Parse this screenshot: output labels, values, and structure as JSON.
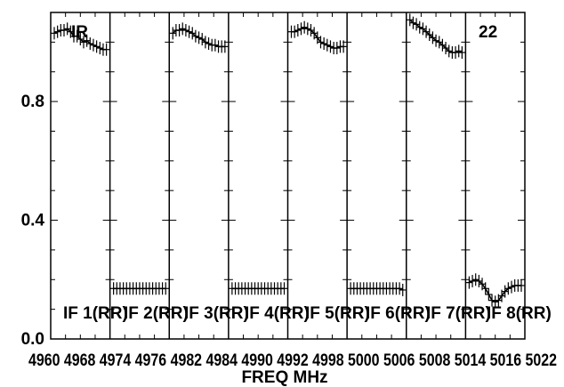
{
  "chart_data": {
    "type": "scatter",
    "title": "",
    "xlabel": "FREQ MHz",
    "ylabel": "",
    "ylim": [
      0.0,
      1.1
    ],
    "y_ticks": [
      0.0,
      0.4,
      0.8
    ],
    "y_tick_labels": [
      "0.0",
      "0.4",
      "0.8"
    ],
    "top_left_label": "IR",
    "top_right_label": "22",
    "x_tick_labels_text": "4960 4968 4974 4976 4982 4984 4990 4992 4998 5000 5006 5008 5014 5016 5022",
    "panels": [
      {
        "label": "IF 1(RR)",
        "xlim": [
          4960,
          4968
        ],
        "x": [
          4960,
          4960.5,
          4961,
          4961.5,
          4962,
          4962.5,
          4963,
          4963.5,
          4964,
          4964.5,
          4965,
          4965.5,
          4966,
          4966.5,
          4967,
          4967.5,
          4968
        ],
        "y": [
          1.03,
          1.035,
          1.04,
          1.04,
          1.045,
          1.035,
          1.02,
          1.02,
          1.01,
          1.0,
          1.005,
          0.995,
          0.99,
          0.985,
          0.98,
          0.975,
          0.975
        ]
      },
      {
        "label": "IF 2(RR)",
        "xlim": [
          4968,
          4976
        ],
        "x": [
          4968,
          4968.5,
          4969,
          4969.5,
          4970,
          4970.5,
          4971,
          4971.5,
          4972,
          4972.5,
          4973,
          4973.5,
          4974,
          4974.5,
          4975,
          4975.5,
          4976
        ],
        "y": [
          0.17,
          0.17,
          0.17,
          0.17,
          0.17,
          0.17,
          0.17,
          0.17,
          0.17,
          0.17,
          0.17,
          0.17,
          0.17,
          0.17,
          0.17,
          0.17,
          0.17
        ]
      },
      {
        "label": "IF 3(RR)",
        "xlim": [
          4976,
          4984
        ],
        "x": [
          4976,
          4976.5,
          4977,
          4977.5,
          4978,
          4978.5,
          4979,
          4979.5,
          4980,
          4980.5,
          4981,
          4981.5,
          4982,
          4982.5,
          4983,
          4983.5,
          4984
        ],
        "y": [
          1.03,
          1.04,
          1.04,
          1.045,
          1.04,
          1.035,
          1.03,
          1.02,
          1.015,
          1.01,
          1.0,
          0.995,
          0.99,
          0.99,
          0.985,
          0.985,
          0.985
        ]
      },
      {
        "label": "IF 4(RR)",
        "xlim": [
          4984,
          4992
        ],
        "x": [
          4984,
          4984.5,
          4985,
          4985.5,
          4986,
          4986.5,
          4987,
          4987.5,
          4988,
          4988.5,
          4989,
          4989.5,
          4990,
          4990.5,
          4991,
          4991.5,
          4992
        ],
        "y": [
          0.17,
          0.17,
          0.17,
          0.17,
          0.17,
          0.17,
          0.17,
          0.17,
          0.17,
          0.17,
          0.17,
          0.17,
          0.17,
          0.17,
          0.17,
          0.17,
          0.17
        ]
      },
      {
        "label": "IF 5(RR)",
        "xlim": [
          4992,
          5000
        ],
        "x": [
          4992,
          4992.5,
          4993,
          4993.5,
          4994,
          4994.5,
          4995,
          4995.5,
          4996,
          4996.5,
          4997,
          4997.5,
          4998,
          4998.5,
          4999,
          4999.5,
          5000
        ],
        "y": [
          1.035,
          1.035,
          1.04,
          1.045,
          1.05,
          1.045,
          1.04,
          1.03,
          1.015,
          1.0,
          0.995,
          0.99,
          0.985,
          0.98,
          0.98,
          0.985,
          0.985
        ]
      },
      {
        "label": "IF 6(RR)",
        "xlim": [
          5000,
          5008
        ],
        "x": [
          5000,
          5000.5,
          5001,
          5001.5,
          5002,
          5002.5,
          5003,
          5003.5,
          5004,
          5004.5,
          5005,
          5005.5,
          5006,
          5006.5,
          5007,
          5007.5,
          5008
        ],
        "y": [
          0.17,
          0.17,
          0.17,
          0.17,
          0.17,
          0.17,
          0.17,
          0.17,
          0.17,
          0.17,
          0.17,
          0.17,
          0.17,
          0.17,
          0.17,
          0.17,
          0.165
        ]
      },
      {
        "label": "IF 7(RR)",
        "xlim": [
          5008,
          5016
        ],
        "x": [
          5008,
          5008.5,
          5009,
          5009.5,
          5010,
          5010.5,
          5011,
          5011.5,
          5012,
          5012.5,
          5013,
          5013.5,
          5014,
          5014.5,
          5015,
          5015.5,
          5016
        ],
        "y": [
          1.075,
          1.065,
          1.06,
          1.05,
          1.045,
          1.035,
          1.025,
          1.015,
          1.005,
          1.0,
          0.99,
          0.98,
          0.97,
          0.965,
          0.965,
          0.97,
          0.965
        ]
      },
      {
        "label": "IF 8(RR)",
        "xlim": [
          5016,
          5024
        ],
        "x": [
          5016,
          5016.5,
          5017,
          5017.5,
          5018,
          5018.5,
          5019,
          5019.5,
          5020,
          5020.5,
          5021,
          5021.5,
          5022,
          5022.5,
          5023,
          5023.5,
          5024
        ],
        "y": [
          0.19,
          0.195,
          0.2,
          0.195,
          0.185,
          0.17,
          0.15,
          0.13,
          0.125,
          0.13,
          0.145,
          0.16,
          0.17,
          0.175,
          0.18,
          0.18,
          0.18
        ]
      }
    ]
  }
}
